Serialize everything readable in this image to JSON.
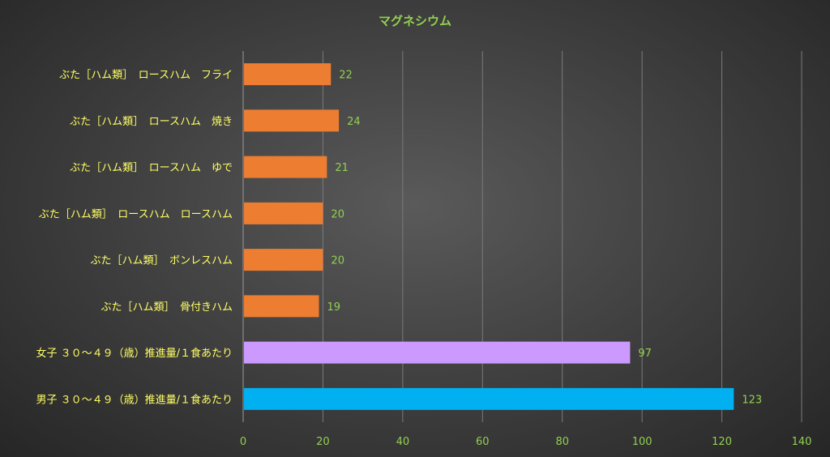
{
  "chart_data": {
    "type": "bar",
    "orientation": "horizontal",
    "title": "マグネシウム",
    "xlabel": "",
    "ylabel": "",
    "xlim": [
      0,
      140
    ],
    "x_ticks": [
      0,
      20,
      40,
      60,
      80,
      100,
      120,
      140
    ],
    "grid": true,
    "data_labels": true,
    "categories": [
      "ぶた［ハム類］　ロースハム　フライ",
      "ぶた［ハム類］　ロースハム　焼き",
      "ぶた［ハム類］　ロースハム　ゆで",
      "ぶた［ハム類］　ロースハム　ロースハム",
      "ぶた［ハム類］　ボンレスハム",
      "ぶた［ハム類］　骨付きハム",
      "女子 ３０～４９（歳）推進量/１食あたり",
      "男子 ３０～４９（歳）推進量/１食あたり"
    ],
    "values": [
      22,
      24,
      21,
      20,
      20,
      19,
      97,
      123
    ],
    "bar_colors": [
      "#ed7d31",
      "#ed7d31",
      "#ed7d31",
      "#ed7d31",
      "#ed7d31",
      "#ed7d31",
      "#cc99ff",
      "#00b0f0"
    ]
  },
  "colors": {
    "title": "#92d050",
    "category_label": "#ffff66",
    "tick_label": "#92d050",
    "data_label": "#92d050",
    "gridline": "#7a7a7a",
    "axis": "#9a9a9a"
  }
}
